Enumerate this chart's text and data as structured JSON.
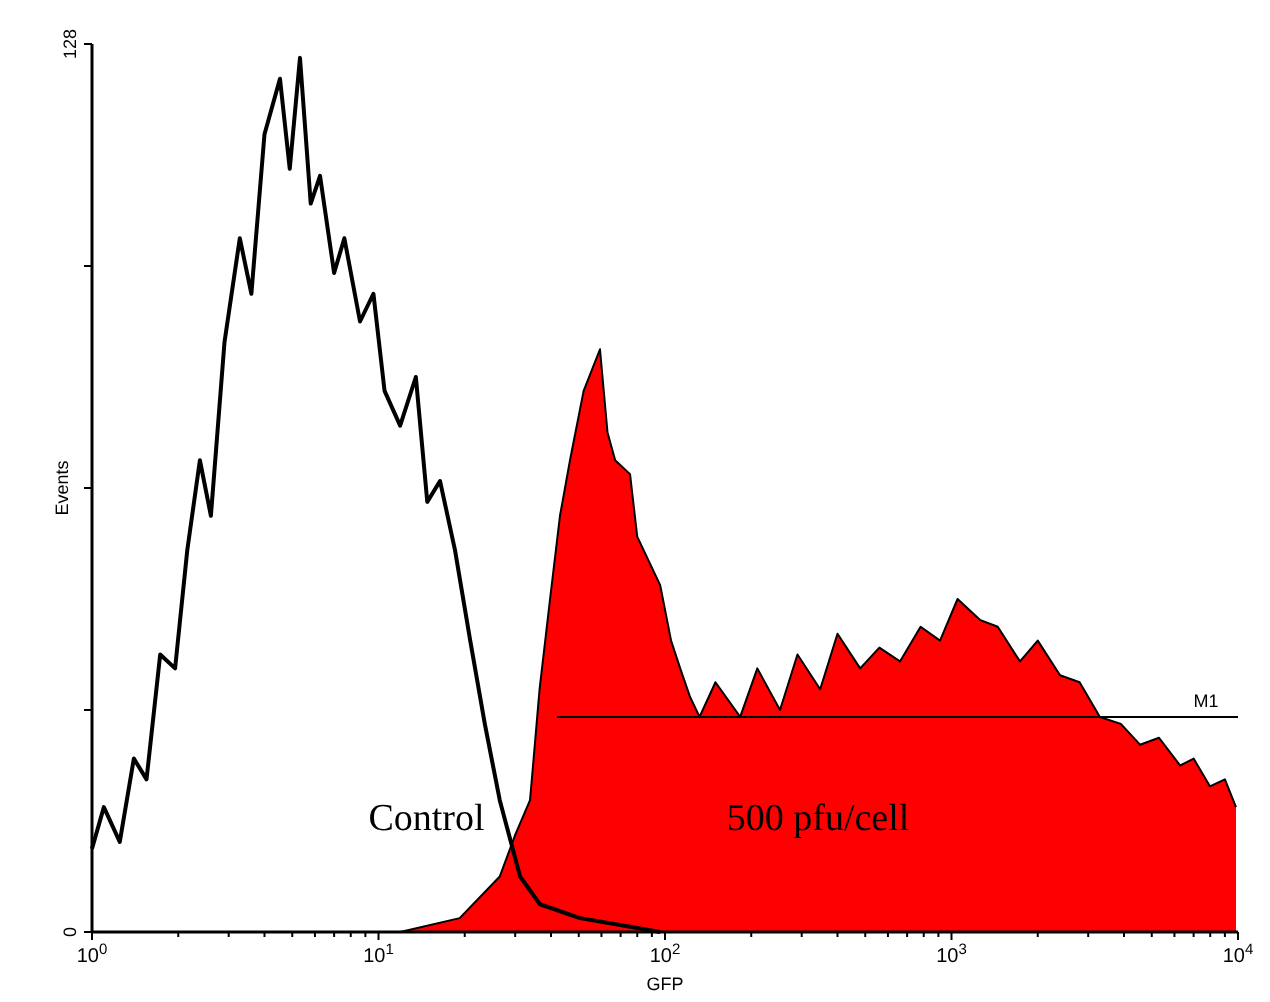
{
  "chart_data": {
    "type": "line",
    "xlabel": "GFP",
    "ylabel": "Events",
    "log": "x",
    "xlim": [
      1,
      10000
    ],
    "ylim": [
      0,
      128
    ],
    "xticks": [
      {
        "value": 1,
        "label": "10$^{0}$"
      },
      {
        "value": 2,
        "label": null
      },
      {
        "value": 3,
        "label": null
      },
      {
        "value": 4,
        "label": null
      },
      {
        "value": 5,
        "label": null
      },
      {
        "value": 6,
        "label": null
      },
      {
        "value": 7,
        "label": null
      },
      {
        "value": 8,
        "label": null
      },
      {
        "value": 9,
        "label": null
      },
      {
        "value": 10,
        "label": "10$^{1}$"
      },
      {
        "value": 20,
        "label": null
      },
      {
        "value": 30,
        "label": null
      },
      {
        "value": 40,
        "label": null
      },
      {
        "value": 50,
        "label": null
      },
      {
        "value": 60,
        "label": null
      },
      {
        "value": 70,
        "label": null
      },
      {
        "value": 80,
        "label": null
      },
      {
        "value": 90,
        "label": null
      },
      {
        "value": 100,
        "label": "10$^{2}$"
      },
      {
        "value": 200,
        "label": null
      },
      {
        "value": 300,
        "label": null
      },
      {
        "value": 400,
        "label": null
      },
      {
        "value": 500,
        "label": null
      },
      {
        "value": 600,
        "label": null
      },
      {
        "value": 700,
        "label": null
      },
      {
        "value": 800,
        "label": null
      },
      {
        "value": 900,
        "label": null
      },
      {
        "value": 1000,
        "label": "10$^{3}$"
      },
      {
        "value": 2000,
        "label": null
      },
      {
        "value": 3000,
        "label": null
      },
      {
        "value": 4000,
        "label": null
      },
      {
        "value": 5000,
        "label": null
      },
      {
        "value": 6000,
        "label": null
      },
      {
        "value": 7000,
        "label": null
      },
      {
        "value": 8000,
        "label": null
      },
      {
        "value": 9000,
        "label": null
      },
      {
        "value": 10000,
        "label": "10$^{4}$"
      }
    ],
    "yticks": [
      0,
      {
        "value": 32,
        "label": null
      },
      {
        "value": 64,
        "label": null
      },
      {
        "value": 96,
        "label": null
      },
      128
    ],
    "series": [
      {
        "name": "Control",
        "color": "#000000",
        "x": [
          1,
          1.1,
          1.25,
          1.4,
          1.55,
          1.73,
          1.95,
          2.15,
          2.38,
          2.6,
          2.9,
          3.28,
          3.6,
          4.0,
          4.53,
          4.9,
          5.32,
          5.8,
          6.25,
          7.0,
          7.6,
          8.62,
          9.6,
          10.5,
          11.9,
          13.5,
          14.8,
          16.4,
          18.5,
          20.9,
          23.5,
          26.5,
          31.2,
          36.6,
          50.5,
          69.7,
          96.2
        ],
        "values": [
          12,
          18,
          13,
          25,
          22,
          40,
          38,
          55,
          68,
          60,
          85,
          100,
          92,
          115,
          123,
          110,
          126,
          105,
          109,
          95,
          100,
          88,
          92,
          78,
          73,
          80,
          62,
          65,
          55,
          42,
          30,
          19,
          8,
          4,
          2,
          1,
          0
        ]
      },
      {
        "name": "500 pfu/cell",
        "type": "area",
        "color": "#ff0000",
        "x": [
          11.9,
          19.2,
          26.5,
          30,
          33.8,
          36.5,
          39.7,
          43,
          46.6,
          52,
          59.3,
          63,
          67,
          75.5,
          80,
          96.2,
          105,
          113,
          122,
          132,
          150,
          183,
          210,
          252,
          290,
          348,
          400,
          480,
          560,
          661,
          780,
          912,
          1050,
          1256,
          1450,
          1734,
          2000,
          2393,
          2800,
          3296,
          3900,
          4550,
          5300,
          6281,
          7000,
          7980,
          9000,
          9840
        ],
        "values": [
          0,
          2,
          8,
          14,
          19,
          35,
          48,
          60,
          68,
          78,
          84,
          72,
          68,
          66,
          57,
          50,
          42,
          38,
          34,
          31,
          36,
          31,
          38,
          32,
          40,
          35,
          43,
          38,
          41,
          39,
          44,
          42,
          48,
          45,
          44,
          39,
          42,
          37,
          36,
          31,
          30,
          27,
          28,
          24,
          25,
          21,
          22,
          18
        ]
      },
      {
        "name": "M1",
        "type": "line",
        "color": "#000000",
        "x": [
          42,
          10000
        ],
        "values": [
          31,
          31
        ]
      }
    ]
  }
}
